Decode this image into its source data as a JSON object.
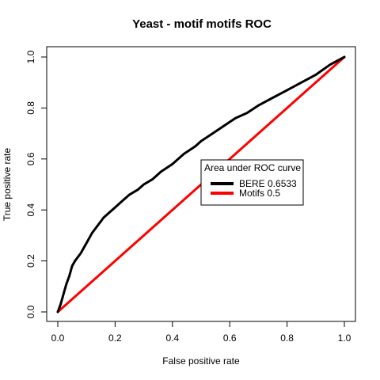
{
  "chart_data": {
    "type": "line",
    "title": "Yeast - motif motifs ROC",
    "xlabel": "False positive rate",
    "ylabel": "True positive rate",
    "xlim": [
      0,
      1
    ],
    "ylim": [
      0,
      1
    ],
    "xticks": [
      "0.0",
      "0.2",
      "0.4",
      "0.6",
      "0.8",
      "1.0"
    ],
    "yticks": [
      "0.0",
      "0.2",
      "0.4",
      "0.6",
      "0.8",
      "1.0"
    ],
    "grid": false,
    "legend": {
      "title": "Area under ROC curve",
      "placement": "center-right",
      "entries": [
        {
          "label": "BERE 0.6533",
          "color": "#000000"
        },
        {
          "label": "Motifs 0.5",
          "color": "#ff0000"
        }
      ]
    },
    "series": [
      {
        "name": "BERE 0.6533",
        "color": "#000000",
        "x": [
          0,
          0.01,
          0.02,
          0.03,
          0.04,
          0.05,
          0.06,
          0.08,
          0.1,
          0.12,
          0.14,
          0.16,
          0.18,
          0.2,
          0.22,
          0.25,
          0.28,
          0.3,
          0.33,
          0.36,
          0.4,
          0.44,
          0.48,
          0.5,
          0.54,
          0.58,
          0.62,
          0.66,
          0.7,
          0.75,
          0.8,
          0.85,
          0.9,
          0.95,
          1.0
        ],
        "y": [
          0,
          0.03,
          0.07,
          0.11,
          0.14,
          0.18,
          0.2,
          0.23,
          0.27,
          0.31,
          0.34,
          0.37,
          0.39,
          0.41,
          0.43,
          0.46,
          0.48,
          0.5,
          0.52,
          0.55,
          0.58,
          0.62,
          0.65,
          0.67,
          0.7,
          0.73,
          0.76,
          0.78,
          0.81,
          0.84,
          0.87,
          0.9,
          0.93,
          0.97,
          1.0
        ]
      },
      {
        "name": "Motifs 0.5",
        "color": "#ff0000",
        "x": [
          0,
          1
        ],
        "y": [
          0,
          1
        ]
      }
    ]
  }
}
